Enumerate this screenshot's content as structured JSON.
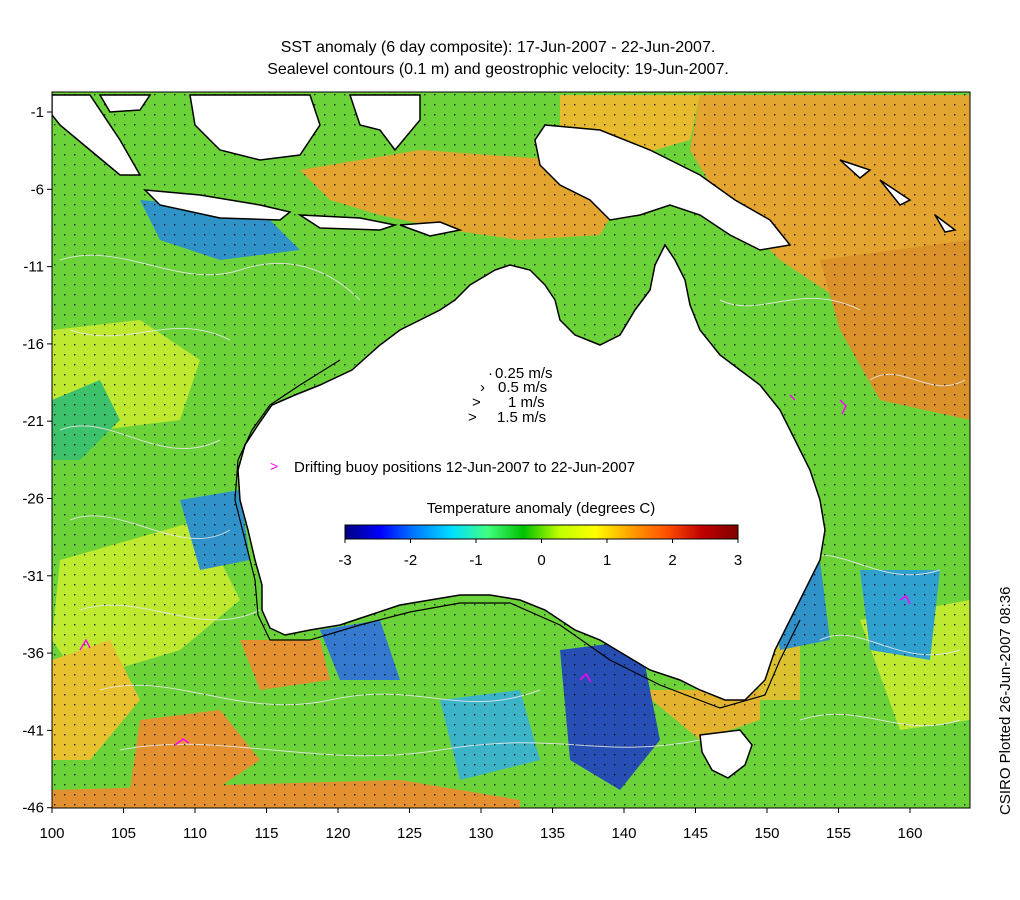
{
  "title_line1": "SST anomaly (6 day composite): 17-Jun-2007 - 22-Jun-2007.",
  "title_line2": "Sealevel contours (0.1 m) and geostrophic velocity: 19-Jun-2007.",
  "credit": "CSIRO Plotted 26-Jun-2007 08:36",
  "lon_ticks": [
    "100",
    "105",
    "110",
    "115",
    "120",
    "125",
    "130",
    "135",
    "140",
    "145",
    "150",
    "155",
    "160"
  ],
  "lat_ticks": [
    "-1",
    "-6",
    "-11",
    "-16",
    "-21",
    "-26",
    "-31",
    "-36",
    "-41",
    "-46"
  ],
  "velocity_legend": [
    "0.25 m/s",
    "0.5 m/s",
    "1 m/s",
    "1.5 m/s"
  ],
  "buoy_legend": "Drifting buoy positions 12-Jun-2007 to 22-Jun-2007",
  "colorbar": {
    "title": "Temperature anomaly (degrees C)",
    "ticks": [
      "-3",
      "-2",
      "-1",
      "0",
      "1",
      "2",
      "3"
    ],
    "colors": [
      "#00007f",
      "#0000ff",
      "#0080ff",
      "#00e0ff",
      "#40ff80",
      "#00c000",
      "#c0ff00",
      "#ffff00",
      "#ffa000",
      "#ff5000",
      "#c00000",
      "#7f0000"
    ]
  },
  "colors": {
    "land": "#ffffff",
    "ocean_base": "#6cd23a",
    "warm": "#f0a030",
    "cool": "#2a8cd8",
    "contour": "#e8e8e8",
    "buoy": "#ff00ff"
  }
}
